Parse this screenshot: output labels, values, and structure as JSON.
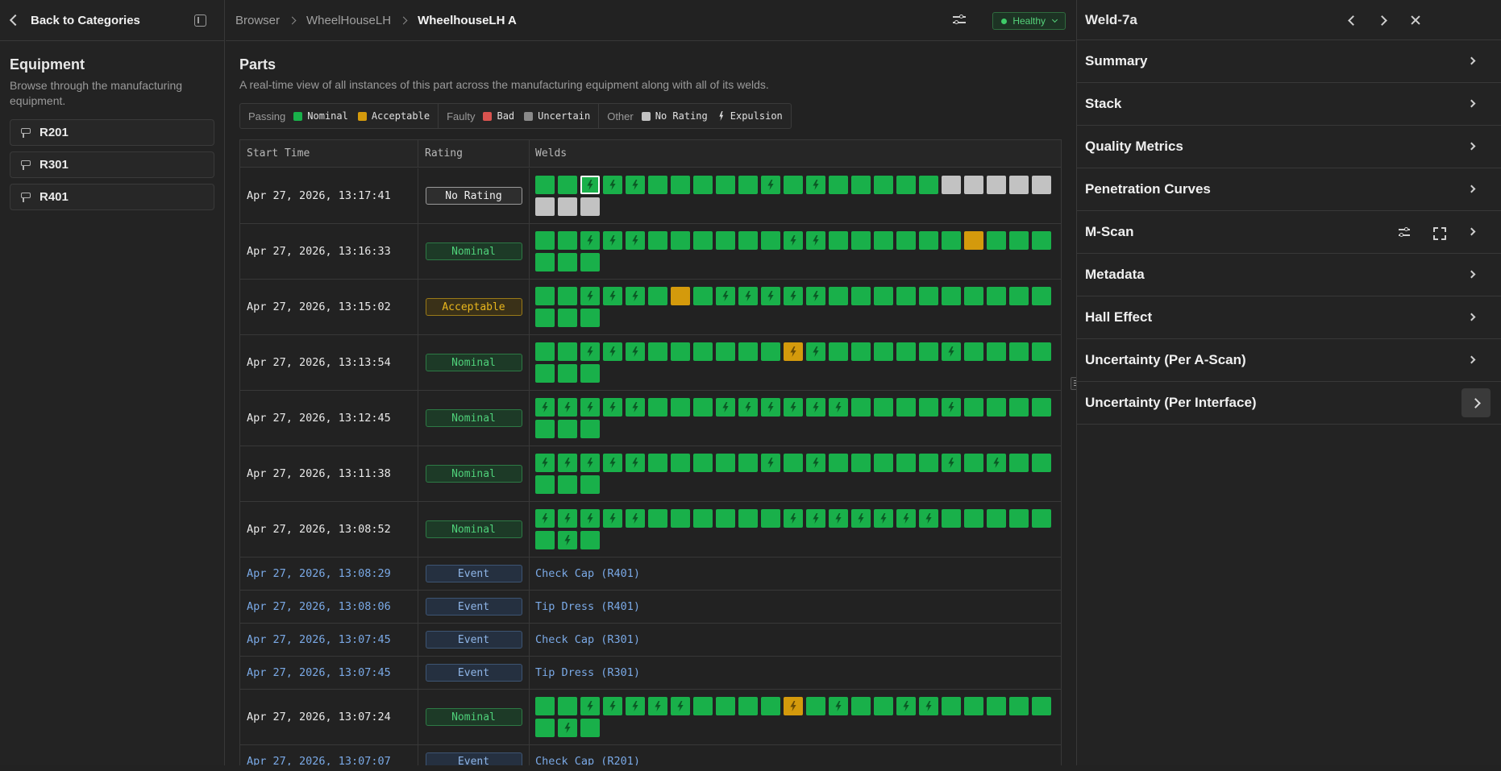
{
  "sidebar": {
    "back_label": "Back to Categories",
    "title": "Equipment",
    "description": "Browse through the manufacturing equipment.",
    "items": [
      {
        "label": "R201"
      },
      {
        "label": "R301"
      },
      {
        "label": "R401"
      }
    ]
  },
  "header": {
    "breadcrumbs": [
      {
        "label": "Browser"
      },
      {
        "label": "WheelHouseLH"
      },
      {
        "label": "WheelhouseLH A"
      }
    ],
    "status": "Healthy"
  },
  "parts": {
    "title": "Parts",
    "description": "A real-time view of all instances of this part across the manufacturing equipment along with all of its welds.",
    "legend": {
      "passing": {
        "label": "Passing",
        "nominal": "Nominal",
        "acceptable": "Acceptable"
      },
      "faulty": {
        "label": "Faulty",
        "bad": "Bad",
        "uncertain": "Uncertain"
      },
      "other": {
        "label": "Other",
        "no_rating": "No Rating",
        "expulsion": "Expulsion"
      }
    },
    "colors": {
      "nominal": "#19b04a",
      "acceptable": "#d49a0c",
      "bad": "#d9534f",
      "uncertain": "#8a8a8a",
      "no_rating": "#c2c2c2"
    },
    "columns": {
      "start_time": "Start Time",
      "rating": "Rating",
      "welds": "Welds"
    },
    "rows": [
      {
        "type": "part",
        "time": "Apr 27, 2026, 13:17:41",
        "rating": "No Rating",
        "rating_class": "none",
        "welds": "GGXXXGGGGGXGXGGGGGNNNNNNNN",
        "selected": 2
      },
      {
        "type": "part",
        "time": "Apr 27, 2026, 13:16:33",
        "rating": "Nominal",
        "rating_class": "nominal",
        "welds": "GGXXXGGGGGGXXGGGGGGAGGGGGG"
      },
      {
        "type": "part",
        "time": "Apr 27, 2026, 13:15:02",
        "rating": "Acceptable",
        "rating_class": "accept",
        "welds": "GGXXXGAGXXXXXGGGGGGGGGGGGG"
      },
      {
        "type": "part",
        "time": "Apr 27, 2026, 13:13:54",
        "rating": "Nominal",
        "rating_class": "nominal",
        "welds": "GGXXXGGGGGGYXGGGGGXGGGGGGG"
      },
      {
        "type": "part",
        "time": "Apr 27, 2026, 13:12:45",
        "rating": "Nominal",
        "rating_class": "nominal",
        "welds": "XXXXXGGGXXXXXXGGGGXGGGGGGG"
      },
      {
        "type": "part",
        "time": "Apr 27, 2026, 13:11:38",
        "rating": "Nominal",
        "rating_class": "nominal",
        "welds": "XXXXXGGGGGXGXGGGGGXGXGGGGG"
      },
      {
        "type": "part",
        "time": "Apr 27, 2026, 13:08:52",
        "rating": "Nominal",
        "rating_class": "nominal",
        "welds": "XXXXXGGGGGGXXXXXXXGGGGGGXG"
      },
      {
        "type": "event",
        "time": "Apr 27, 2026, 13:08:29",
        "rating": "Event",
        "event": "Check Cap (R401)"
      },
      {
        "type": "event",
        "time": "Apr 27, 2026, 13:08:06",
        "rating": "Event",
        "event": "Tip Dress (R401)"
      },
      {
        "type": "event",
        "time": "Apr 27, 2026, 13:07:45",
        "rating": "Event",
        "event": "Check Cap (R301)"
      },
      {
        "type": "event",
        "time": "Apr 27, 2026, 13:07:45",
        "rating": "Event",
        "event": "Tip Dress (R301)"
      },
      {
        "type": "part",
        "time": "Apr 27, 2026, 13:07:24",
        "rating": "Nominal",
        "rating_class": "nominal",
        "welds": "GGXXXXXGGGGYGXGGXXGGGGGGXG"
      },
      {
        "type": "event",
        "time": "Apr 27, 2026, 13:07:07",
        "rating": "Event",
        "event": "Check Cap (R201)"
      }
    ]
  },
  "panel": {
    "title": "Weld-7a",
    "sections": [
      {
        "label": "Summary"
      },
      {
        "label": "Stack"
      },
      {
        "label": "Quality Metrics"
      },
      {
        "label": "Penetration Curves"
      },
      {
        "label": "M-Scan"
      },
      {
        "label": "Metadata"
      },
      {
        "label": "Hall Effect"
      },
      {
        "label": "Uncertainty (Per A-Scan)"
      },
      {
        "label": "Uncertainty (Per Interface)"
      }
    ]
  },
  "icons": [
    "chevron-left-icon",
    "sidebar-collapse-icon",
    "robot-icon",
    "filter-icon",
    "chevron-down-icon",
    "chevron-right-icon",
    "close-icon",
    "expand-icon",
    "expulsion-bolt-icon",
    "resize-grip-icon"
  ]
}
